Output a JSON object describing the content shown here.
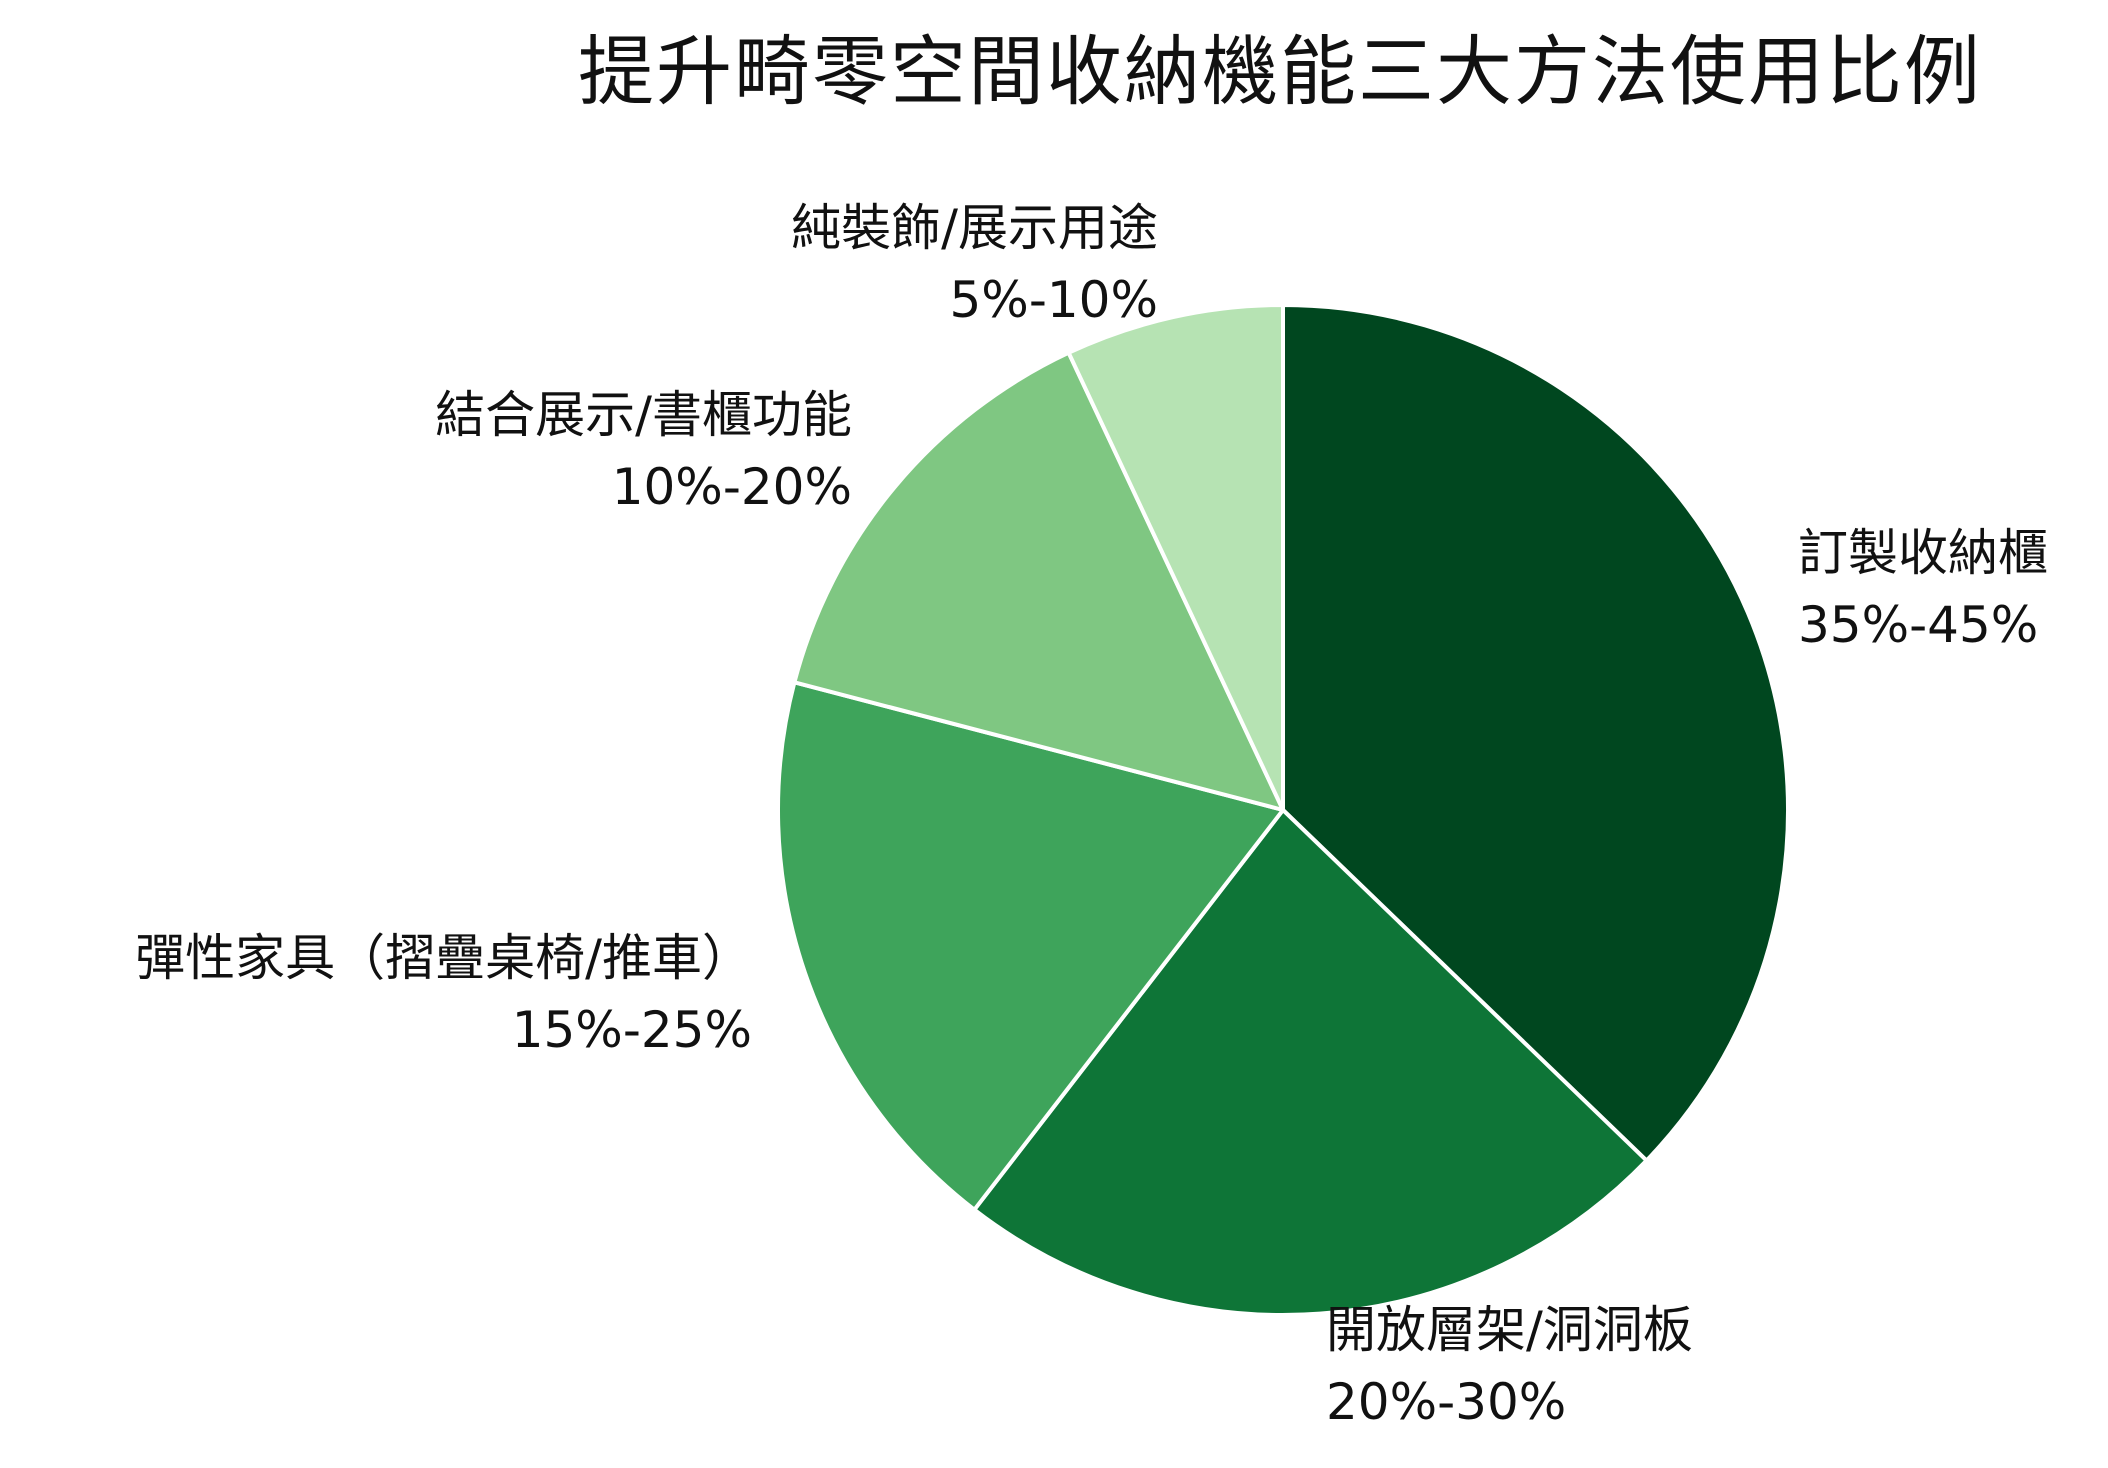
{
  "chart_data": {
    "type": "pie",
    "title": "提升畸零空間收納機能三大方法使用比例",
    "start_angle_deg": 0,
    "direction": "clockwise",
    "slices": [
      {
        "label": "訂製收納櫃",
        "range_text": "35%-45%",
        "value": 40,
        "color": "#00471f"
      },
      {
        "label": "開放層架/洞洞板",
        "range_text": "20%-30%",
        "value": 25,
        "color": "#0e7537"
      },
      {
        "label": "彈性家具（摺疊桌椅/推車）",
        "range_text": "15%-25%",
        "value": 20,
        "color": "#3ea45b"
      },
      {
        "label": "結合展示/書櫃功能",
        "range_text": "10%-20%",
        "value": 15,
        "color": "#7fc782"
      },
      {
        "label": "純裝飾/展示用途",
        "range_text": "5%-10%",
        "value": 7.5,
        "color": "#b6e3b3"
      }
    ]
  }
}
